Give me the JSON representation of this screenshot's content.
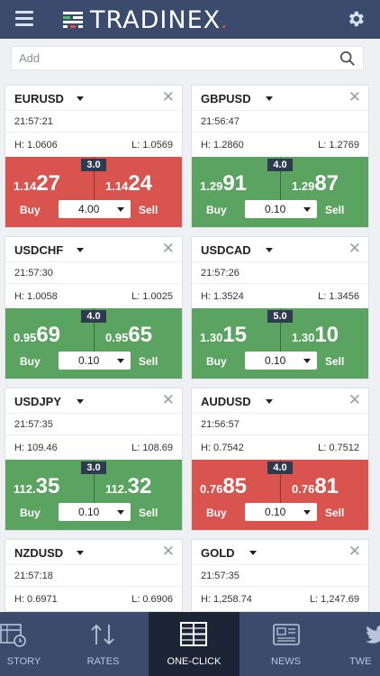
{
  "header": {
    "brand": "TRADINEX",
    "brand_dot": "."
  },
  "search": {
    "placeholder": "Add"
  },
  "tiles": [
    {
      "symbol": "EURUSD",
      "time": "21:57:21",
      "high": "H: 1.0606",
      "low": "L: 1.0569",
      "spread": "3.0",
      "bid_pre": "1.14",
      "bid_pip": "27",
      "ask_pre": "1.14",
      "ask_pip": "24",
      "quantity": "4.00",
      "buy": "Buy",
      "sell": "Sell",
      "direction": "down",
      "color": "#d9534f"
    },
    {
      "symbol": "GBPUSD",
      "time": "21:56:47",
      "high": "H: 1.2860",
      "low": "L: 1.2769",
      "spread": "4.0",
      "bid_pre": "1.29",
      "bid_pip": "91",
      "ask_pre": "1.29",
      "ask_pip": "87",
      "quantity": "0.10",
      "buy": "Buy",
      "sell": "Sell",
      "direction": "up",
      "color": "#5ba360"
    },
    {
      "symbol": "USDCHF",
      "time": "21:57:30",
      "high": "H: 1.0058",
      "low": "L: 1.0025",
      "spread": "4.0",
      "bid_pre": "0.95",
      "bid_pip": "69",
      "ask_pre": "0.95",
      "ask_pip": "65",
      "quantity": "0.10",
      "buy": "Buy",
      "sell": "Sell",
      "direction": "up",
      "color": "#5ba360"
    },
    {
      "symbol": "USDCAD",
      "time": "21:57:26",
      "high": "H: 1.3524",
      "low": "L: 1.3456",
      "spread": "5.0",
      "bid_pre": "1.30",
      "bid_pip": "15",
      "ask_pre": "1.30",
      "ask_pip": "10",
      "quantity": "0.10",
      "buy": "Buy",
      "sell": "Sell",
      "direction": "up",
      "color": "#5ba360"
    },
    {
      "symbol": "USDJPY",
      "time": "21:57:35",
      "high": "H: 109.46",
      "low": "L: 108.69",
      "spread": "3.0",
      "bid_pre": "112.",
      "bid_pip": "35",
      "ask_pre": "112.",
      "ask_pip": "32",
      "quantity": "0.10",
      "buy": "Buy",
      "sell": "Sell",
      "direction": "up",
      "color": "#5ba360"
    },
    {
      "symbol": "AUDUSD",
      "time": "21:56:57",
      "high": "H: 0.7542",
      "low": "L: 0.7512",
      "spread": "4.0",
      "bid_pre": "0.76",
      "bid_pip": "85",
      "ask_pre": "0.76",
      "ask_pip": "81",
      "quantity": "0.10",
      "buy": "Buy",
      "sell": "Sell",
      "direction": "down",
      "color": "#d9534f"
    },
    {
      "symbol": "NZDUSD",
      "time": "21:57:18",
      "high": "H: 0.6971",
      "low": "L: 0.6906"
    },
    {
      "symbol": "GOLD",
      "time": "21:57:35",
      "high": "H: 1,258.74",
      "low": "L: 1,247.69"
    }
  ],
  "nav": [
    {
      "label": "STORY",
      "icon": "history-icon",
      "active": false
    },
    {
      "label": "RATES",
      "icon": "rates-icon",
      "active": false
    },
    {
      "label": "ONE-CLICK",
      "icon": "one-click-icon",
      "active": true
    },
    {
      "label": "NEWS",
      "icon": "news-icon",
      "active": false
    },
    {
      "label": "TWE",
      "icon": "twitter-icon",
      "active": false
    }
  ]
}
